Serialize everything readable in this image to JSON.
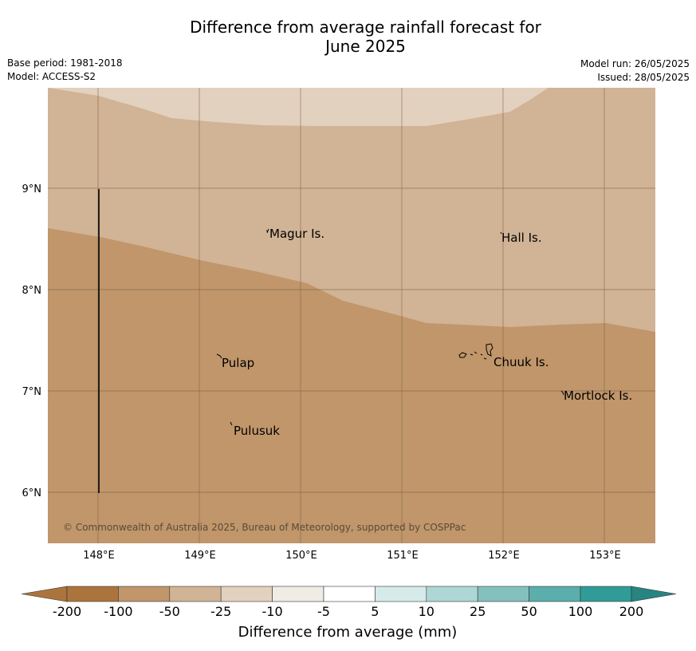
{
  "title_line1": "Difference from average rainfall forecast for",
  "title_line2": "June 2025",
  "base_period": "Base period: 1981-2018",
  "model": "Model: ACCESS-S2",
  "model_run": "Model run: 26/05/2025",
  "issued": "Issued: 28/05/2025",
  "copyright": "© Commonwealth of Australia 2025, Bureau of Meteorology, supported by COSPPac",
  "lon_ticks": [
    "148°E",
    "149°E",
    "150°E",
    "151°E",
    "152°E",
    "153°E"
  ],
  "lat_ticks": [
    "9°N",
    "8°N",
    "7°N",
    "6°N"
  ],
  "places": [
    {
      "name": "Magur Is.",
      "lon": 149.7,
      "lat": 8.53
    },
    {
      "name": "Hall Is.",
      "lon": 151.97,
      "lat": 8.49
    },
    {
      "name": "Pulap",
      "lon": 149.2,
      "lat": 7.27
    },
    {
      "name": "Chuuk Is.",
      "lon": 151.9,
      "lat": 7.28
    },
    {
      "name": "Mortlock Is.",
      "lon": 152.6,
      "lat": 6.95
    },
    {
      "name": "Pulusuk",
      "lon": 149.32,
      "lat": 6.6
    }
  ],
  "colorbar": {
    "title": "Difference from average (mm)",
    "labels": [
      "-200",
      "-100",
      "-50",
      "-25",
      "-10",
      "-5",
      "5",
      "10",
      "25",
      "50",
      "100",
      "200"
    ],
    "colors": [
      "#ac743d",
      "#c0966a",
      "#d1b395",
      "#e2d1bf",
      "#f0ece5",
      "#ffffff",
      "#d6ebe9",
      "#aed6d4",
      "#84c1be",
      "#5aaeab",
      "#319b98",
      "#268481",
      "#1a6c6a"
    ]
  },
  "map_colors": {
    "band_-50_-25": "#d1b395",
    "band_-100_-50": "#c0966a",
    "band_-25_-10": "#e2d1bf"
  }
}
